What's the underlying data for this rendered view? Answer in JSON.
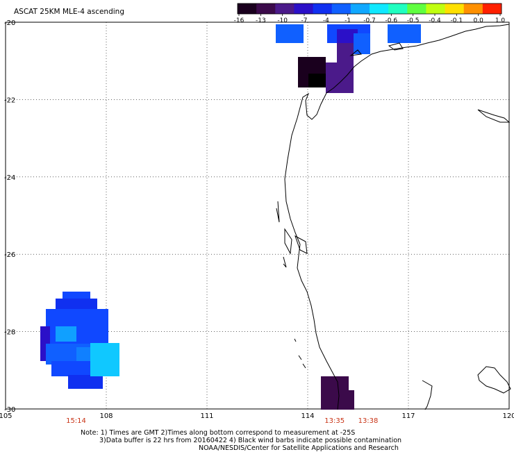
{
  "title": "ASCAT 25KM MLE-4 ascending",
  "colorbar": {
    "colors": [
      "#1a001e",
      "#3b0a4a",
      "#4b1a8a",
      "#2b10c8",
      "#1030f0",
      "#1060ff",
      "#10a8ff",
      "#10e8ff",
      "#20ffc0",
      "#60ff40",
      "#c0ff10",
      "#ffe000",
      "#ff9000",
      "#ff2000"
    ],
    "labels": [
      "-16",
      "-13",
      "-10",
      "-7",
      "-4",
      "-1",
      "-0.7",
      "-0.6",
      "-0.5",
      "-0.4",
      "-0.1",
      "0.0",
      "1.0"
    ]
  },
  "lon_ticks": [
    "105",
    "108",
    "111",
    "114",
    "117",
    "120"
  ],
  "lat_ticks": [
    "-20",
    "-22",
    "-24",
    "-26",
    "-28",
    "-30"
  ],
  "time_labels": [
    {
      "text": "15:14",
      "lon": 107.1
    },
    {
      "text": "13:35",
      "lon": 114.8
    },
    {
      "text": "13:38",
      "lon": 115.8
    }
  ],
  "notes": [
    "Note: 1) Times are GMT 2)Times along bottom correspond to measurement at -25S",
    "3)Data buffer is 22 hrs from 20160422 4) Black wind barbs indicate possible contamination",
    "NOAA/NESDIS/Center for Satellite Applications and Research"
  ]
}
